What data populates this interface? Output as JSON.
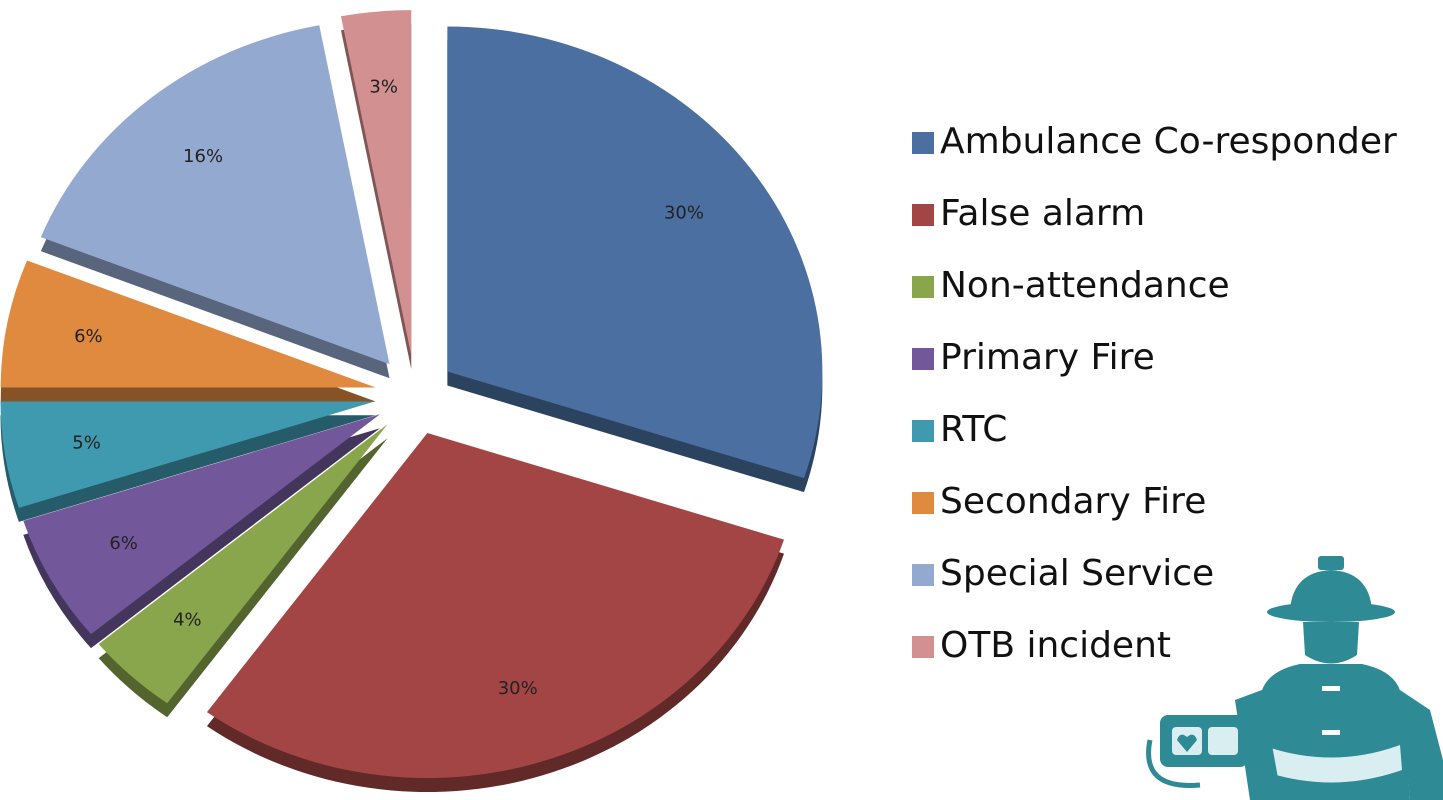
{
  "chart_data": {
    "type": "pie",
    "categories": [
      "Ambulance Co-responder",
      "False alarm",
      "Non-attendance",
      "Primary Fire",
      "RTC",
      "Secondary Fire",
      "Special Service",
      "OTB incident"
    ],
    "values": [
      30,
      30,
      4,
      6,
      5,
      6,
      16,
      3
    ],
    "value_labels": [
      "30%",
      "30%",
      "4%",
      "6%",
      "5%",
      "6%",
      "16%",
      "3%"
    ],
    "colors": [
      "#4a6fa0",
      "#a44545",
      "#8aa64c",
      "#72589a",
      "#3f9aaf",
      "#e08a3f",
      "#93a9cf",
      "#d29090"
    ],
    "legend": "right"
  }
}
